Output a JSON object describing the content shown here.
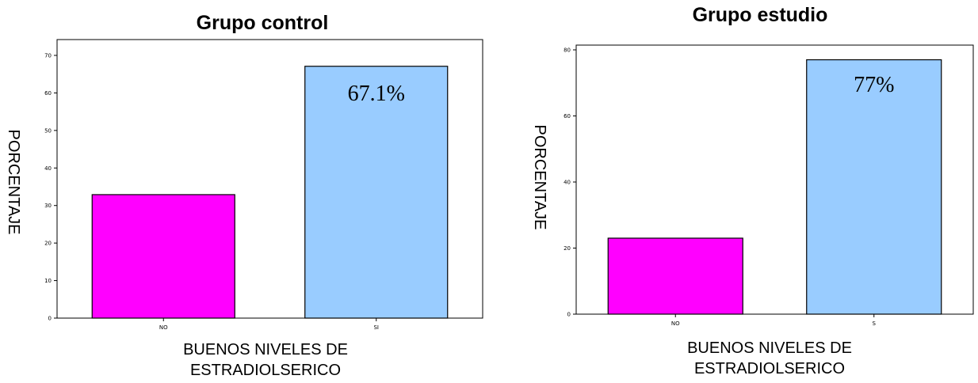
{
  "chart_data": [
    {
      "type": "bar",
      "title": "Grupo control",
      "xlabel": "BUENOS NIVELES DE ESTRADIOLSERICO",
      "ylabel": "PORCENTAJE",
      "categories": [
        "NO",
        "SI"
      ],
      "values": [
        32.9,
        67.1
      ],
      "data_labels": [
        "",
        "67.1%"
      ],
      "ylim": [
        0,
        70
      ],
      "yticks": [
        0,
        10,
        20,
        30,
        40,
        50,
        60,
        70
      ],
      "colors": [
        "#ff00ff",
        "#99ccff"
      ],
      "grid": false,
      "legend": "none"
    },
    {
      "type": "bar",
      "title": "Grupo estudio",
      "xlabel": "BUENOS NIVELES DE ESTRADIOLSERICO",
      "ylabel": "PORCENTAJE",
      "categories": [
        "NO",
        "S"
      ],
      "values": [
        23,
        77
      ],
      "data_labels": [
        "",
        "77%"
      ],
      "ylim": [
        0,
        80
      ],
      "yticks": [
        0,
        20,
        40,
        60,
        80
      ],
      "colors": [
        "#ff00ff",
        "#99ccff"
      ],
      "grid": false,
      "legend": "none"
    }
  ]
}
